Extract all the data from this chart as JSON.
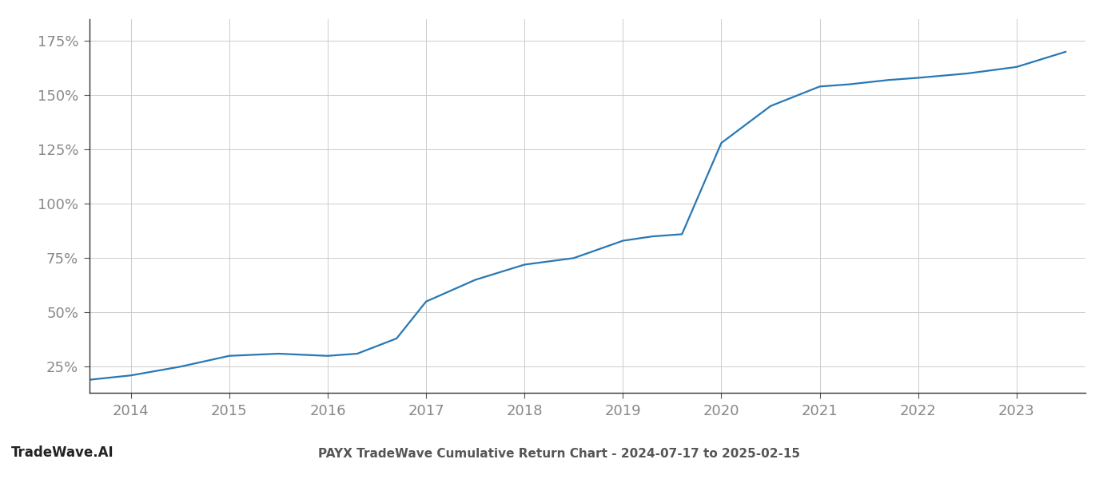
{
  "title": "PAYX TradeWave Cumulative Return Chart - 2024-07-17 to 2025-02-15",
  "watermark": "TradeWave.AI",
  "line_color": "#2878b5",
  "background_color": "#ffffff",
  "grid_color": "#cccccc",
  "x_years": [
    2013.58,
    2014.0,
    2014.5,
    2015.0,
    2015.5,
    2016.0,
    2016.3,
    2016.7,
    2017.0,
    2017.5,
    2018.0,
    2018.5,
    2019.0,
    2019.3,
    2019.6,
    2020.0,
    2020.5,
    2021.0,
    2021.3,
    2021.7,
    2022.0,
    2022.5,
    2023.0,
    2023.5
  ],
  "y_values": [
    19,
    21,
    25,
    30,
    31,
    30,
    31,
    38,
    55,
    65,
    72,
    75,
    83,
    85,
    86,
    128,
    145,
    154,
    155,
    157,
    158,
    160,
    163,
    170
  ],
  "xlim": [
    2013.58,
    2023.7
  ],
  "ylim": [
    13,
    185
  ],
  "yticks": [
    25,
    50,
    75,
    100,
    125,
    150,
    175
  ],
  "xticks": [
    2014,
    2015,
    2016,
    2017,
    2018,
    2019,
    2020,
    2021,
    2022,
    2023
  ],
  "tick_label_color": "#888888",
  "title_color": "#555555",
  "watermark_color": "#222222",
  "line_width": 1.6,
  "font_family": "DejaVu Sans"
}
